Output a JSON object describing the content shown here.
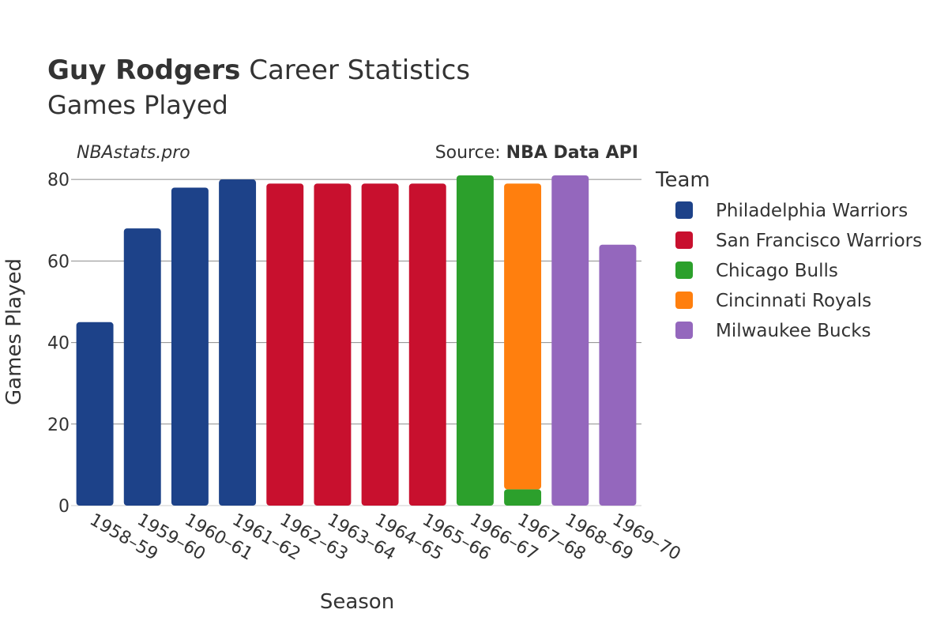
{
  "header": {
    "player": "Guy Rodgers",
    "title_rest": " Career Statistics",
    "subtitle": "Games Played",
    "watermark": "NBAstats.pro",
    "source_prefix": "Source: ",
    "source_name": "NBA Data API"
  },
  "legend": {
    "title": "Team",
    "items": [
      {
        "label": "Philadelphia Warriors",
        "color": "#1d4289"
      },
      {
        "label": "San Francisco Warriors",
        "color": "#c8102e"
      },
      {
        "label": "Chicago Bulls",
        "color": "#2ca02c"
      },
      {
        "label": "Cincinnati Royals",
        "color": "#ff7f0e"
      },
      {
        "label": "Milwaukee Bucks",
        "color": "#9467bd"
      }
    ]
  },
  "chart_data": {
    "type": "bar",
    "stacked": true,
    "xlabel": "Season",
    "ylabel": "Games Played",
    "ylim": [
      0,
      81
    ],
    "yticks": [
      0,
      20,
      40,
      60,
      80
    ],
    "grid": true,
    "legend_position": "right",
    "categories": [
      "1958–59",
      "1959–60",
      "1960–61",
      "1961–62",
      "1962–63",
      "1963–64",
      "1964–65",
      "1965–66",
      "1966–67",
      "1967–68",
      "1968–69",
      "1969–70"
    ],
    "series": [
      {
        "name": "Philadelphia Warriors",
        "color": "#1d4289",
        "values": [
          45,
          68,
          78,
          80,
          0,
          0,
          0,
          0,
          0,
          0,
          0,
          0
        ]
      },
      {
        "name": "San Francisco Warriors",
        "color": "#c8102e",
        "values": [
          0,
          0,
          0,
          0,
          79,
          79,
          79,
          79,
          0,
          0,
          0,
          0
        ]
      },
      {
        "name": "Chicago Bulls",
        "color": "#2ca02c",
        "values": [
          0,
          0,
          0,
          0,
          0,
          0,
          0,
          0,
          81,
          4,
          0,
          0
        ]
      },
      {
        "name": "Cincinnati Royals",
        "color": "#ff7f0e",
        "values": [
          0,
          0,
          0,
          0,
          0,
          0,
          0,
          0,
          0,
          75,
          0,
          0
        ]
      },
      {
        "name": "Milwaukee Bucks",
        "color": "#9467bd",
        "values": [
          0,
          0,
          0,
          0,
          0,
          0,
          0,
          0,
          0,
          0,
          81,
          64
        ]
      }
    ]
  }
}
